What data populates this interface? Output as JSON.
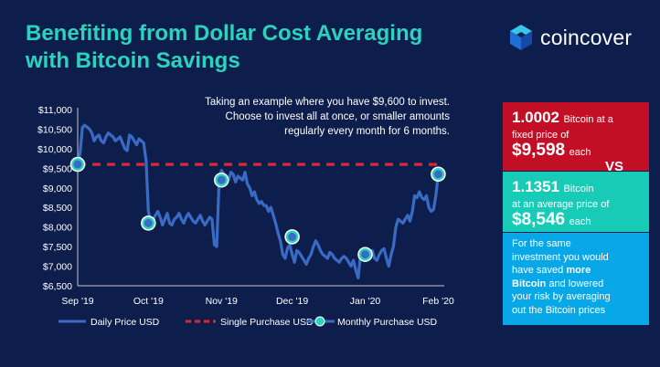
{
  "title": {
    "line1": "Benefiting from Dollar Cost Averaging",
    "line2": "with Bitcoin Savings"
  },
  "logo": {
    "text": "coincover",
    "icon": "hexagon-cube-icon"
  },
  "note": {
    "line1": "Taking an example where you have $9,600 to invest.",
    "line2": "Choose to invest all at once, or smaller amounts",
    "line3": "regularly every month for 6 months."
  },
  "panels": {
    "single": {
      "amount": "1.0002",
      "text1": "Bitcoin at a",
      "text2": "fixed price of",
      "price": "$9,598",
      "suffix": "each"
    },
    "vs": "VS",
    "average": {
      "amount": "1.1351",
      "text1": "Bitcoin",
      "text2": "at an average price of",
      "price": "$8,546",
      "suffix": "each"
    },
    "summary": {
      "t1": "For the same",
      "t2": "investment you would",
      "t3a": "have saved",
      "t3b": "more",
      "t4a": "Bitcoin",
      "t4b": "and lowered",
      "t5": "your risk by averaging",
      "t6": "out the Bitcoin prices"
    }
  },
  "colors": {
    "background": "#0d1e4d",
    "title": "#2bd3bf",
    "daily_line": "#3a6bc4",
    "single_line": "#e3252c",
    "monthly_marker": "#2bd3bf",
    "panel_red": "#c20f25",
    "panel_teal": "#17cbb6",
    "panel_blue": "#08a8e8"
  },
  "chart_data": {
    "type": "line",
    "title": "",
    "xlabel": "",
    "ylabel": "",
    "ylim": [
      6500,
      11000
    ],
    "yticks": [
      6500,
      7000,
      7500,
      8000,
      8500,
      9000,
      9500,
      10000,
      10500,
      11000
    ],
    "ytick_labels": [
      "$6,500",
      "$7,000",
      "$7,500",
      "$8,000",
      "$8,500",
      "$9,000",
      "$9,500",
      "$10,000",
      "$10,500",
      "$11,000"
    ],
    "x_range": [
      0,
      154
    ],
    "xtick_positions": [
      0,
      30,
      61,
      91,
      122,
      153
    ],
    "xtick_labels": [
      "Sep '19",
      "Oct '19",
      "Nov '19",
      "Dec '19",
      "Jan '20",
      "Feb '20"
    ],
    "legend_position": "bottom",
    "series": [
      {
        "name": "Daily Price USD",
        "kind": "line",
        "x": [
          0,
          1,
          2,
          3,
          4,
          5,
          6,
          7,
          8,
          9,
          10,
          11,
          12,
          13,
          14,
          15,
          16,
          17,
          18,
          19,
          20,
          21,
          22,
          23,
          24,
          25,
          26,
          27,
          28,
          29,
          30,
          31,
          32,
          33,
          34,
          35,
          36,
          37,
          38,
          39,
          40,
          41,
          42,
          43,
          44,
          45,
          46,
          47,
          48,
          49,
          50,
          51,
          52,
          53,
          54,
          55,
          56,
          57,
          58,
          59,
          60,
          61,
          62,
          63,
          64,
          65,
          66,
          67,
          68,
          69,
          70,
          71,
          72,
          73,
          74,
          75,
          76,
          77,
          78,
          79,
          80,
          81,
          82,
          83,
          84,
          85,
          86,
          87,
          88,
          89,
          90,
          91,
          92,
          93,
          94,
          95,
          96,
          97,
          98,
          99,
          100,
          101,
          102,
          103,
          104,
          105,
          106,
          107,
          108,
          109,
          110,
          111,
          112,
          113,
          114,
          115,
          116,
          117,
          118,
          119,
          120,
          121,
          122,
          123,
          124,
          125,
          126,
          127,
          128,
          129,
          130,
          131,
          132,
          133,
          134,
          135,
          136,
          137,
          138,
          139,
          140,
          141,
          142,
          143,
          144,
          145,
          146,
          147,
          148,
          149,
          150,
          151,
          152,
          153
        ],
        "values": [
          9600,
          9900,
          10550,
          10600,
          10550,
          10500,
          10400,
          10200,
          10300,
          10350,
          10200,
          10150,
          10300,
          10400,
          10350,
          10300,
          10200,
          10250,
          10300,
          10150,
          10000,
          9950,
          10350,
          10300,
          10200,
          10100,
          10250,
          10200,
          10150,
          9700,
          8400,
          8100,
          8200,
          8300,
          8400,
          8250,
          8050,
          8200,
          8350,
          8100,
          8050,
          8200,
          8250,
          8350,
          8200,
          8100,
          8250,
          8350,
          8250,
          8150,
          8100,
          8200,
          8300,
          8150,
          8050,
          8150,
          8250,
          8200,
          7550,
          7500,
          9200,
          9450,
          9350,
          9100,
          9200,
          9400,
          9350,
          9150,
          9300,
          9250,
          9200,
          9400,
          9100,
          9000,
          8800,
          8900,
          8700,
          8600,
          8650,
          8550,
          8550,
          8400,
          8500,
          8300,
          8100,
          7850,
          7650,
          7300,
          7200,
          7450,
          7550,
          7300,
          7100,
          7400,
          7350,
          7250,
          7150,
          7050,
          7200,
          7300,
          7500,
          7650,
          7550,
          7400,
          7300,
          7250,
          7200,
          7350,
          7300,
          7200,
          7150,
          7100,
          7200,
          7250,
          7200,
          7100,
          7000,
          7150,
          6900,
          6700,
          7300,
          7400,
          7300,
          7250,
          7350,
          7400,
          7200,
          7150,
          7300,
          7400,
          7450,
          7200,
          7000,
          7300,
          7500,
          8000,
          8200,
          8150,
          8100,
          8200,
          8300,
          8150,
          8400,
          8800,
          8750,
          8900,
          8750,
          8700,
          8800,
          8500,
          8400,
          8450,
          8800,
          9350
        ]
      },
      {
        "name": "Single Purchase USD",
        "kind": "dashed",
        "x": [
          0,
          153
        ],
        "values": [
          9598,
          9598
        ]
      },
      {
        "name": "Monthly Purchase USD",
        "kind": "markers",
        "x": [
          0,
          30,
          61,
          91,
          122,
          153
        ],
        "values": [
          9600,
          8100,
          9200,
          7750,
          7300,
          9350
        ]
      }
    ]
  }
}
